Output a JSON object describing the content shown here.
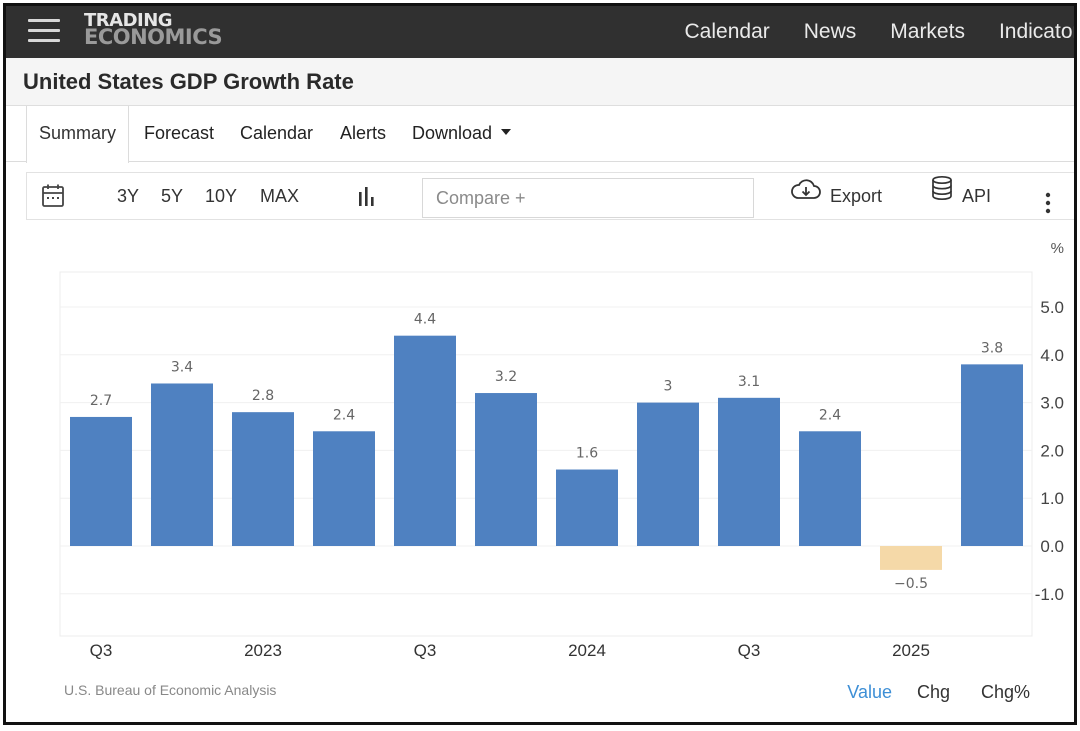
{
  "nav": {
    "logo_line1": "TRADING",
    "logo_line2": "ECONOMICS",
    "links": [
      "Calendar",
      "News",
      "Markets",
      "Indicators"
    ]
  },
  "page": {
    "title": "United States GDP Growth Rate"
  },
  "tabs": [
    "Summary",
    "Forecast",
    "Calendar",
    "Alerts",
    "Download"
  ],
  "toolbar": {
    "calendar_icon": "calendar-icon",
    "ranges": [
      "3Y",
      "5Y",
      "10Y",
      "MAX"
    ],
    "chart_type_icon": "bar-chart-icon",
    "compare_placeholder": "Compare +",
    "export_label": "Export",
    "export_icon": "cloud-download-icon",
    "api_label": "API",
    "api_icon": "database-icon",
    "more_icon": "vertical-dots-icon"
  },
  "chart_data": {
    "type": "bar",
    "unit_label": "%",
    "values": [
      2.7,
      3.4,
      2.8,
      2.4,
      4.4,
      3.2,
      1.6,
      3,
      3.1,
      2.4,
      -0.5,
      3.8
    ],
    "value_labels": [
      "2.7",
      "3.4",
      "2.8",
      "2.4",
      "4.4",
      "3.2",
      "1.6",
      "3",
      "3.1",
      "2.4",
      "−0.5",
      "3.8"
    ],
    "x_tick_labels": [
      "Q3",
      "2023",
      "Q3",
      "2024",
      "Q3",
      "2025"
    ],
    "y_ticks": [
      -1,
      0,
      1,
      2,
      3,
      4,
      5
    ],
    "y_tick_labels": [
      "-1.0",
      "0.0",
      "1.0",
      "2.0",
      "3.0",
      "4.0",
      "5.0"
    ],
    "ylim": [
      -1.7,
      5.5
    ],
    "positive_color": "#4f81c1",
    "negative_color": "#f5d9a8",
    "grid": true
  },
  "footer": {
    "source": "U.S. Bureau of Economic Analysis",
    "value_tabs": [
      "Value",
      "Chg",
      "Chg%"
    ],
    "active_color": "#3d8fd6"
  }
}
